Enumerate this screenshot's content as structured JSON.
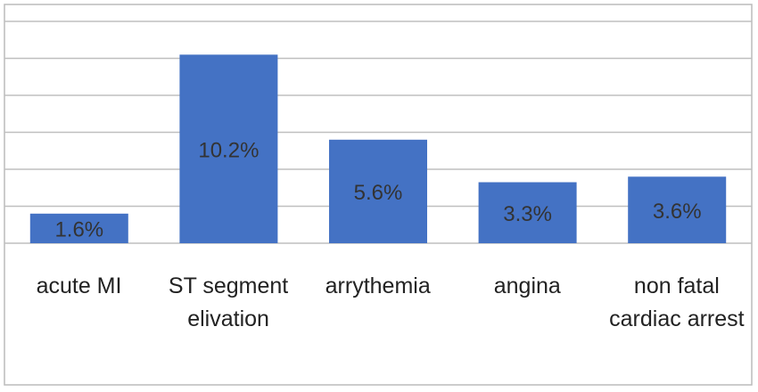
{
  "chart_data": {
    "type": "bar",
    "categories": [
      "acute MI",
      "ST segment elivation",
      "arrythemia",
      "angina",
      "non fatal cardiac arrest"
    ],
    "values": [
      1.6,
      10.2,
      5.6,
      3.3,
      3.6
    ],
    "value_labels": [
      "1.6%",
      "10.2%",
      "5.6%",
      "3.3%",
      "3.6%"
    ],
    "color": "#4472c4",
    "ylim": [
      0,
      12
    ],
    "yticks": [
      0,
      2,
      4,
      6,
      8,
      10,
      12
    ],
    "grid": true
  }
}
